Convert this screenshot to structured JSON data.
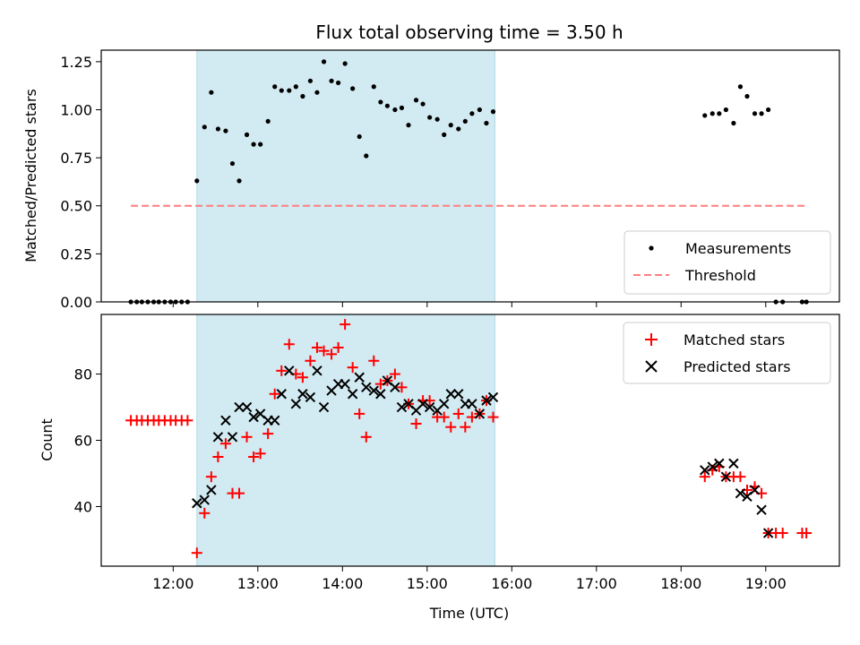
{
  "chart_data": {
    "type": "scatter",
    "title": "Flux total observing time = 3.50 h",
    "xlabel": "Time (UTC)",
    "x_ticks": [
      "12:00",
      "13:00",
      "14:00",
      "15:00",
      "16:00",
      "17:00",
      "18:00",
      "19:00"
    ],
    "x_tick_hours": [
      12,
      13,
      14,
      15,
      16,
      17,
      18,
      19
    ],
    "xlim_hours": [
      11.15,
      19.87
    ],
    "highlight_span_hours": [
      12.28,
      15.8
    ],
    "colors": {
      "span_fill": "#add8e6",
      "measurement": "#000000",
      "threshold": "#ff7f7f",
      "matched": "#ff0000",
      "predicted": "#000000"
    },
    "panels": [
      {
        "id": "top",
        "ylabel": "Matched/Predicted stars",
        "ylim": [
          0,
          1.31
        ],
        "y_ticks": [
          0.0,
          0.25,
          0.5,
          0.75,
          1.0,
          1.25
        ],
        "y_tick_labels": [
          "0.00",
          "0.25",
          "0.50",
          "0.75",
          "1.00",
          "1.25"
        ],
        "legend_position": "lower-right",
        "threshold": {
          "name": "Threshold",
          "value": 0.5,
          "x_range": [
            11.5,
            19.5
          ]
        },
        "measurements": {
          "name": "Measurements",
          "x": [
            11.5,
            11.57,
            11.63,
            11.7,
            11.77,
            11.83,
            11.9,
            11.97,
            12.03,
            12.1,
            12.17,
            12.28,
            12.37,
            12.45,
            12.53,
            12.62,
            12.7,
            12.78,
            12.87,
            12.95,
            13.03,
            13.12,
            13.2,
            13.28,
            13.37,
            13.45,
            13.53,
            13.62,
            13.7,
            13.78,
            13.87,
            13.95,
            14.03,
            14.12,
            14.2,
            14.28,
            14.37,
            14.45,
            14.53,
            14.62,
            14.7,
            14.78,
            14.87,
            14.95,
            15.03,
            15.12,
            15.2,
            15.28,
            15.37,
            15.45,
            15.53,
            15.62,
            15.7,
            15.78,
            18.28,
            18.37,
            18.45,
            18.53,
            18.62,
            18.7,
            18.78,
            18.87,
            18.95,
            19.03,
            19.12,
            19.2,
            19.43,
            19.48
          ],
          "y": [
            0,
            0,
            0,
            0,
            0,
            0,
            0,
            0,
            0,
            0,
            0,
            0.63,
            0.91,
            1.09,
            0.9,
            0.89,
            0.72,
            0.63,
            0.87,
            0.82,
            0.82,
            0.94,
            1.12,
            1.1,
            1.1,
            1.12,
            1.07,
            1.15,
            1.09,
            1.25,
            1.15,
            1.14,
            1.24,
            1.11,
            0.86,
            0.76,
            1.12,
            1.04,
            1.02,
            1.0,
            1.01,
            0.92,
            1.05,
            1.03,
            0.96,
            0.95,
            0.87,
            0.92,
            0.9,
            0.94,
            0.98,
            1.0,
            0.93,
            0.99,
            0.97,
            0.98,
            0.98,
            1.0,
            0.93,
            1.12,
            1.07,
            0.98,
            0.98,
            1.0,
            0,
            0,
            0,
            0
          ]
        }
      },
      {
        "id": "bottom",
        "ylabel": "Count",
        "ylim": [
          22,
          98
        ],
        "y_ticks": [
          40,
          60,
          80
        ],
        "y_tick_labels": [
          "40",
          "60",
          "80"
        ],
        "legend_position": "upper-right",
        "matched": {
          "name": "Matched stars",
          "x": [
            11.5,
            11.57,
            11.63,
            11.7,
            11.77,
            11.83,
            11.9,
            11.97,
            12.03,
            12.1,
            12.17,
            12.28,
            12.37,
            12.45,
            12.53,
            12.62,
            12.7,
            12.78,
            12.87,
            12.95,
            13.03,
            13.12,
            13.2,
            13.28,
            13.37,
            13.45,
            13.53,
            13.62,
            13.7,
            13.78,
            13.87,
            13.95,
            14.03,
            14.12,
            14.2,
            14.28,
            14.37,
            14.45,
            14.53,
            14.62,
            14.7,
            14.78,
            14.87,
            14.95,
            15.03,
            15.12,
            15.2,
            15.28,
            15.37,
            15.45,
            15.53,
            15.62,
            15.7,
            15.78,
            18.28,
            18.37,
            18.45,
            18.53,
            18.62,
            18.7,
            18.78,
            18.87,
            18.95,
            19.03,
            19.12,
            19.2,
            19.43,
            19.48
          ],
          "y": [
            66,
            66,
            66,
            66,
            66,
            66,
            66,
            66,
            66,
            66,
            66,
            26,
            38,
            49,
            55,
            59,
            44,
            44,
            61,
            55,
            56,
            62,
            74,
            81,
            89,
            80,
            79,
            84,
            88,
            87,
            86,
            88,
            95,
            82,
            68,
            61,
            84,
            77,
            78,
            80,
            76,
            71,
            65,
            72,
            72,
            67,
            67,
            64,
            68,
            64,
            67,
            68,
            72,
            67,
            49,
            51,
            52,
            49,
            49,
            49,
            45,
            46,
            44,
            32,
            32,
            32,
            32,
            32
          ]
        },
        "predicted": {
          "name": "Predicted stars",
          "x": [
            12.28,
            12.37,
            12.45,
            12.53,
            12.62,
            12.7,
            12.78,
            12.87,
            12.95,
            13.03,
            13.12,
            13.2,
            13.28,
            13.37,
            13.45,
            13.53,
            13.62,
            13.7,
            13.78,
            13.87,
            13.95,
            14.03,
            14.12,
            14.2,
            14.28,
            14.37,
            14.45,
            14.53,
            14.62,
            14.7,
            14.78,
            14.87,
            14.95,
            15.03,
            15.12,
            15.2,
            15.28,
            15.37,
            15.45,
            15.53,
            15.62,
            15.7,
            15.78,
            18.28,
            18.37,
            18.45,
            18.53,
            18.62,
            18.7,
            18.78,
            18.87,
            18.95,
            19.03
          ],
          "y": [
            41,
            42,
            45,
            61,
            66,
            61,
            70,
            70,
            67,
            68,
            66,
            66,
            74,
            81,
            71,
            74,
            73,
            81,
            70,
            75,
            77,
            77,
            74,
            79,
            76,
            75,
            74,
            78,
            76,
            70,
            71,
            69,
            71,
            70,
            69,
            71,
            74,
            74,
            71,
            71,
            68,
            72,
            73,
            51,
            52,
            53,
            49,
            53,
            44,
            43,
            45,
            39,
            32
          ]
        }
      }
    ]
  }
}
